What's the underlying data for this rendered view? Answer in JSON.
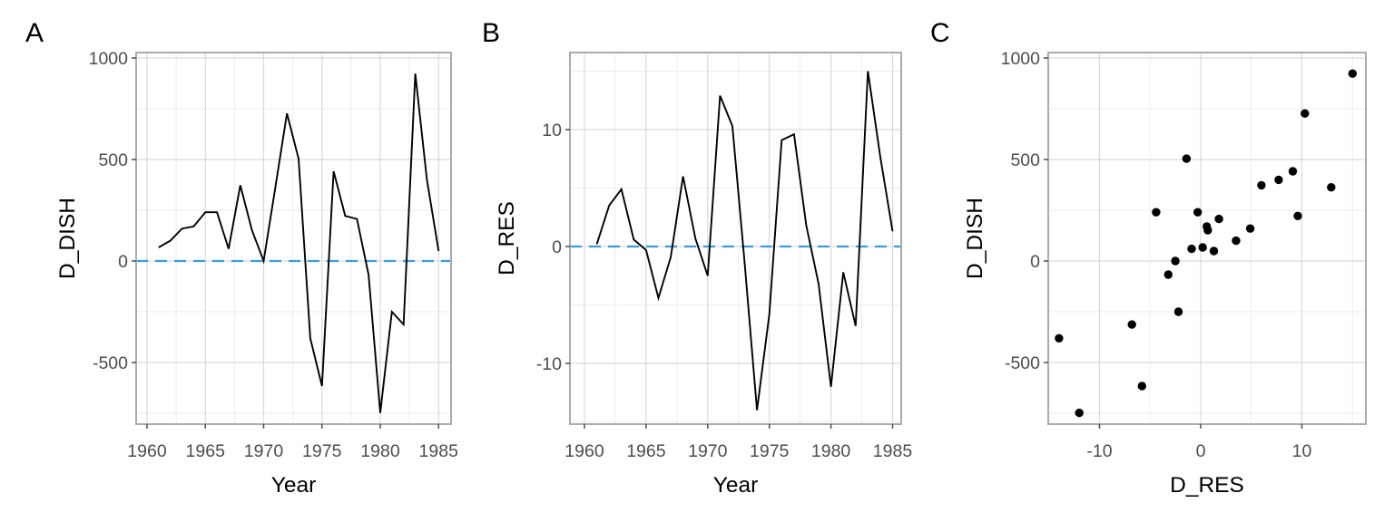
{
  "figure": {
    "background": "#FFFFFF",
    "panels": [
      {
        "tag": "A",
        "x_label": "Year",
        "y_label": "D_DISH"
      },
      {
        "tag": "B",
        "x_label": "Year",
        "y_label": "D_RES"
      },
      {
        "tag": "C",
        "x_label": "D_RES",
        "y_label": "D_DISH"
      }
    ]
  },
  "colors": {
    "background": "#FFFFFF",
    "line": "#000000",
    "point": "#000000",
    "hline": "#3B9DD8",
    "grid_major": "#D9D9D9",
    "grid_minor": "#EDEDED",
    "panel_border": "#ABABAB",
    "tick_mark": "#4D4D4D",
    "tick_label": "#4D4D4D",
    "axis_title": "#000000"
  },
  "chart_data": [
    {
      "type": "line",
      "panel": "A",
      "title": "",
      "xlabel": "Year",
      "ylabel": "D_DISH",
      "x": [
        1961,
        1962,
        1963,
        1964,
        1965,
        1966,
        1967,
        1968,
        1969,
        1970,
        1971,
        1972,
        1973,
        1974,
        1975,
        1976,
        1977,
        1978,
        1979,
        1980,
        1981,
        1982,
        1983,
        1984,
        1985
      ],
      "y": [
        67,
        100,
        160,
        170,
        240,
        240,
        60,
        373,
        152,
        0,
        363,
        727,
        504,
        -381,
        -616,
        442,
        222,
        207,
        -67,
        -748,
        -250,
        -313,
        923,
        400,
        49
      ],
      "hline_y": 0,
      "hline_style": "dashed",
      "x_ticks": [
        1960,
        1965,
        1970,
        1975,
        1980,
        1985
      ],
      "y_ticks": [
        -500,
        0,
        500,
        1000
      ],
      "xlim": [
        1959.1,
        1986.1
      ],
      "ylim": [
        -790,
        1027
      ],
      "grid": true,
      "legend": null
    },
    {
      "type": "line",
      "panel": "B",
      "title": "",
      "xlabel": "Year",
      "ylabel": "D_RES",
      "x": [
        1961,
        1962,
        1963,
        1964,
        1965,
        1966,
        1967,
        1968,
        1969,
        1970,
        1971,
        1972,
        1973,
        1974,
        1975,
        1976,
        1977,
        1978,
        1979,
        1980,
        1981,
        1982,
        1983,
        1984,
        1985
      ],
      "y": [
        0.2,
        3.5,
        4.9,
        0.6,
        -0.3,
        -4.4,
        -0.9,
        6.0,
        0.7,
        -2.5,
        12.9,
        10.3,
        -1.4,
        -14.0,
        -5.8,
        9.1,
        9.6,
        1.8,
        -3.2,
        -12.0,
        -2.2,
        -6.8,
        15.0,
        7.7,
        1.3
      ],
      "hline_y": 0,
      "hline_style": "dashed",
      "x_ticks": [
        1960,
        1965,
        1970,
        1975,
        1980,
        1985
      ],
      "y_ticks": [
        -10,
        0,
        10
      ],
      "xlim": [
        1959.1,
        1986.1
      ],
      "ylim": [
        -16.6,
        16.6
      ],
      "grid": true,
      "legend": null
    },
    {
      "type": "scatter",
      "panel": "C",
      "title": "",
      "xlabel": "D_RES",
      "ylabel": "D_DISH",
      "x": [
        0.2,
        3.5,
        4.9,
        0.6,
        -0.3,
        -4.4,
        -0.9,
        6.0,
        0.7,
        -2.5,
        12.9,
        10.3,
        -1.4,
        -14.0,
        -5.8,
        9.1,
        9.6,
        1.8,
        -3.2,
        -12.0,
        -2.2,
        -6.8,
        15.0,
        7.7,
        1.3
      ],
      "y": [
        67,
        100,
        160,
        170,
        240,
        240,
        60,
        373,
        152,
        0,
        363,
        727,
        504,
        -381,
        -616,
        442,
        222,
        207,
        -67,
        -748,
        -250,
        -313,
        923,
        400,
        49
      ],
      "hline_y": null,
      "x_ticks": [
        -10,
        0,
        10
      ],
      "y_ticks": [
        -500,
        0,
        500,
        1000
      ],
      "xlim": [
        -15.1,
        16.3
      ],
      "ylim": [
        -790,
        1027
      ],
      "grid": true,
      "legend": null
    }
  ]
}
